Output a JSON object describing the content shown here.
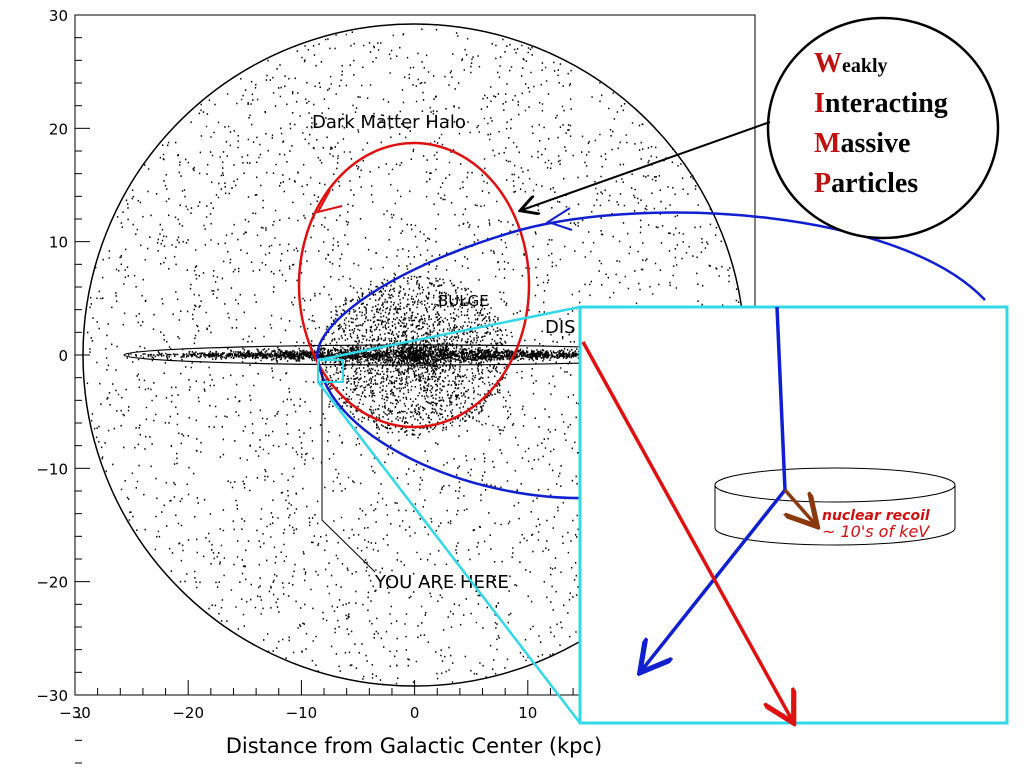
{
  "plot": {
    "yticks": [
      "30",
      "20",
      "10",
      "0",
      "−10",
      "−20",
      "−30"
    ],
    "xticks": [
      "−30",
      "−20",
      "−10",
      "0",
      "10"
    ],
    "xlabel": "Distance from Galactic Center (kpc)",
    "labels": {
      "halo": "Dark Matter Halo",
      "bulge": "BULGE",
      "disk": "DIS",
      "here": "YOU ARE HERE"
    }
  },
  "wimp": [
    {
      "initial": "W",
      "rest": "eakly"
    },
    {
      "initial": "I",
      "rest": "nteracting"
    },
    {
      "initial": "M",
      "rest": "assive"
    },
    {
      "initial": "P",
      "rest": "articles"
    }
  ],
  "inset": {
    "recoil": "nuclear recoil",
    "energy": "~ 10's of keV"
  }
}
